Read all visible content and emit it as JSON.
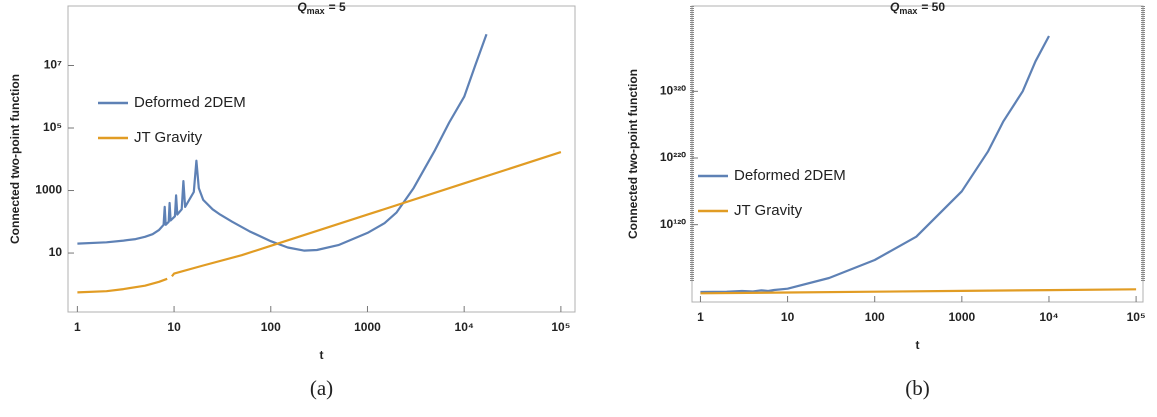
{
  "chart_data": [
    {
      "type": "line",
      "title": {
        "symbol": "Q",
        "subscript": "max",
        "text": "= 5"
      },
      "xlabel": "t",
      "ylabel": "Connected two-point function",
      "caption": "(a)",
      "xscale": "log",
      "yscale": "log",
      "xlim": [
        0.8,
        140000
      ],
      "ylim": [
        0.13,
        800000000
      ],
      "xticks": [
        1,
        10,
        100,
        1000,
        {
          "value": 10000,
          "label": "10⁴"
        },
        {
          "value": 100000,
          "label": "10⁵"
        }
      ],
      "yticks": [
        10,
        1000,
        {
          "value": 100000,
          "label": "10⁵"
        },
        {
          "value": 10000000,
          "label": "10⁷"
        }
      ],
      "legend": "upper left",
      "series": [
        {
          "name": "Deformed 2DEM",
          "color": "#5e81b5",
          "x": [
            1,
            2,
            3,
            4,
            5,
            6,
            7,
            7.8,
            8,
            8.2,
            8.8,
            9,
            9.2,
            10.2,
            10.5,
            10.8,
            12,
            12.5,
            13,
            16,
            17,
            18,
            20,
            25,
            30,
            40,
            60,
            100,
            150,
            220,
            300,
            500,
            1000,
            1500,
            2000,
            3000,
            5000,
            7000,
            10000,
            13000,
            17000
          ],
          "values": [
            20,
            22,
            25,
            28,
            33,
            40,
            55,
            80,
            300,
            80,
            100,
            400,
            110,
            150,
            700,
            170,
            250,
            2000,
            300,
            900,
            9000,
            1200,
            500,
            250,
            170,
            100,
            50,
            24,
            15,
            12,
            12.5,
            18,
            44,
            90,
            200,
            1200,
            20000,
            150000,
            1000000,
            10000000,
            100000000
          ]
        },
        {
          "name": "JT Gravity",
          "color": "#e19c24",
          "x": [
            1,
            2,
            3,
            5,
            7,
            8.5,
            9,
            9.5,
            10,
            20,
            50,
            100,
            1000,
            10000,
            100000
          ],
          "values": [
            0.55,
            0.6,
            0.7,
            0.9,
            1.2,
            1.5,
            null,
            1.8,
            2.2,
            4,
            8.5,
            17,
            170,
            1700,
            17000
          ]
        }
      ]
    },
    {
      "type": "line",
      "title": {
        "symbol": "Q",
        "subscript": "max",
        "text": "= 50"
      },
      "xlabel": "t",
      "ylabel": "Connected two-point function",
      "caption": "(b)",
      "xscale": "log",
      "yscale": "log10-exponent",
      "xlim": [
        0.8,
        120000
      ],
      "ylim": [
        4,
        448
      ],
      "xticks": [
        1,
        10,
        100,
        1000,
        {
          "value": 10000,
          "label": "10⁴"
        },
        {
          "value": 100000,
          "label": "10⁵"
        }
      ],
      "yticks": [
        {
          "value": 120,
          "label": "10¹²⁰"
        },
        {
          "value": 220,
          "label": "10²²⁰"
        },
        {
          "value": 320,
          "label": "10³²⁰"
        }
      ],
      "legend": "center left",
      "series": [
        {
          "name": "Deformed 2DEM",
          "color": "#5e81b5",
          "x": [
            1,
            2,
            3,
            4,
            5,
            6,
            7,
            10,
            30,
            100,
            300,
            1000,
            2000,
            3000,
            5000,
            7000,
            10000
          ],
          "values": [
            19,
            19.5,
            20.5,
            19.8,
            21.5,
            20.5,
            22,
            24,
            40,
            67,
            102,
            170,
            230,
            275,
            320,
            365,
            403
          ]
        },
        {
          "name": "JT Gravity",
          "color": "#e19c24",
          "x": [
            1,
            10,
            100,
            1000,
            10000,
            100000
          ],
          "values": [
            17,
            18.2,
            19.4,
            20.6,
            21.8,
            23
          ]
        }
      ]
    }
  ]
}
